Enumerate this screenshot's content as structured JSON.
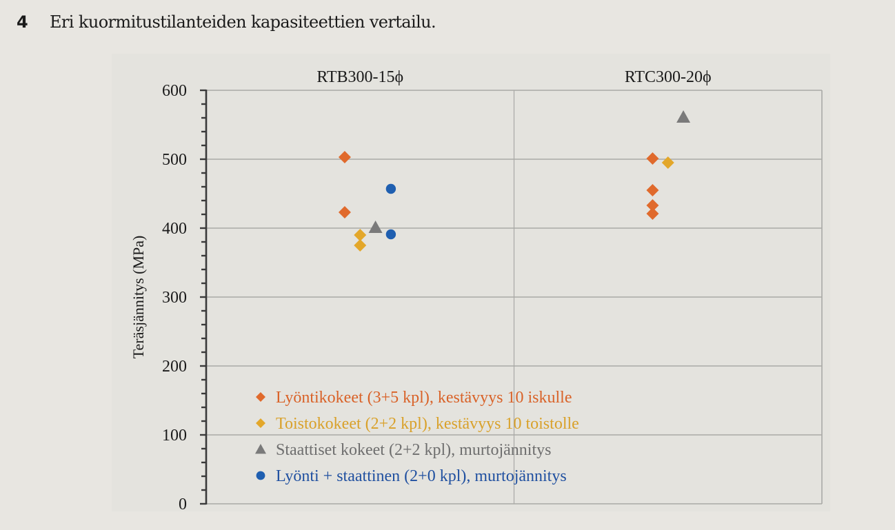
{
  "caption": {
    "number": "4",
    "text": "Eri kuormitustilanteiden kapasiteettien vertailu."
  },
  "chart_data": {
    "type": "scatter",
    "title": "",
    "categories": [
      "RTB300-15ϕ",
      "RTC300-20ϕ"
    ],
    "xlabel": "",
    "ylabel": "Teräsjännitys (MPa)",
    "ylim": [
      0,
      600
    ],
    "yticks": [
      0,
      100,
      200,
      300,
      400,
      500,
      600
    ],
    "y_minor_step": 20,
    "grid": true,
    "legend_position": "bottom-left inside plot",
    "series": [
      {
        "name": "Lyöntikokeet (3+5 kpl), kestävyys 10 iskulle",
        "marker": "diamond",
        "color": "#e06a2c",
        "points": [
          {
            "category": 0,
            "value": 503
          },
          {
            "category": 0,
            "value": 423
          },
          {
            "category": 1,
            "value": 501
          },
          {
            "category": 1,
            "value": 455
          },
          {
            "category": 1,
            "value": 433
          },
          {
            "category": 1,
            "value": 421
          }
        ]
      },
      {
        "name": "Toistokokeet (2+2 kpl), kestävyys 10 toistolle",
        "marker": "diamond",
        "color": "#e3a72a",
        "points": [
          {
            "category": 0,
            "value": 390
          },
          {
            "category": 0,
            "value": 375
          },
          {
            "category": 1,
            "value": 495
          }
        ]
      },
      {
        "name": "Staattiset kokeet (2+2 kpl), murtojännitys",
        "marker": "triangle",
        "color": "#7a7a7a",
        "points": [
          {
            "category": 0,
            "value": 401
          },
          {
            "category": 1,
            "value": 561
          }
        ]
      },
      {
        "name": "Lyönti + staattinen (2+0 kpl), murtojännitys",
        "marker": "circle",
        "color": "#1f5fb0",
        "points": [
          {
            "category": 0,
            "value": 457
          },
          {
            "category": 0,
            "value": 391
          }
        ]
      }
    ]
  }
}
